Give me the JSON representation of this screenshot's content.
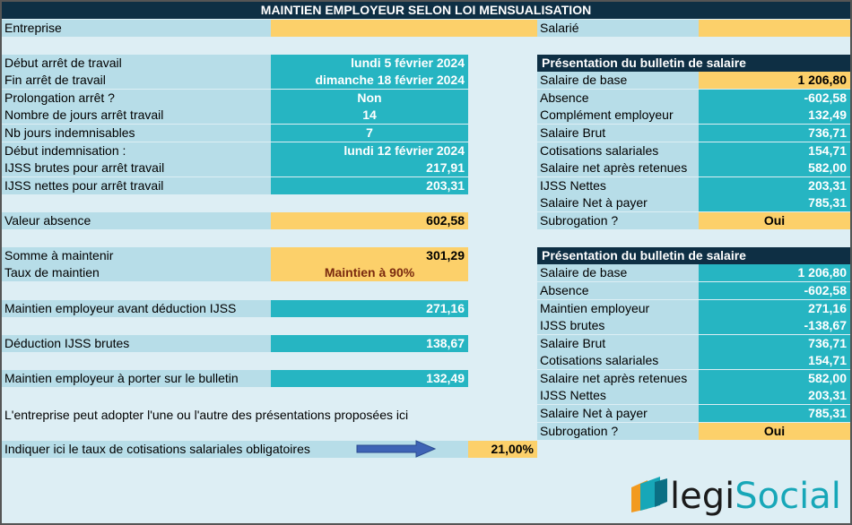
{
  "title": "MAINTIEN EMPLOYEUR SELON LOI MENSUALISATION",
  "top": {
    "entreprise_label": "Entreprise",
    "salarie_label": "Salarié"
  },
  "left": [
    {
      "label": "Début arrêt de travail",
      "value": "lundi 5 février 2024"
    },
    {
      "label": "Fin arrêt de travail",
      "value": "dimanche 18 février 2024"
    },
    {
      "label": "Prolongation arrêt ?",
      "value": "Non"
    },
    {
      "label": "Nombre de jours arrêt travail",
      "value": "14"
    },
    {
      "label": "Nb jours indemnisables",
      "value": "7"
    },
    {
      "label": "Début indemnisation :",
      "value": "lundi 12 février 2024"
    },
    {
      "label": "IJSS brutes pour arrêt travail",
      "value": "217,91"
    },
    {
      "label": "IJSS nettes pour arrêt travail",
      "value": "203,31"
    }
  ],
  "valeur_absence": {
    "label": "Valeur absence",
    "value": "602,58"
  },
  "somme": {
    "label": "Somme à maintenir",
    "value": "301,29"
  },
  "taux": {
    "label": "Taux de maintien",
    "value": "Maintien à 90%"
  },
  "avant": {
    "label": "Maintien employeur avant déduction IJSS",
    "value": "271,16"
  },
  "deduction": {
    "label": "Déduction IJSS brutes",
    "value": "138,67"
  },
  "porter": {
    "label": "Maintien employeur à porter sur le bulletin",
    "value": "132,49"
  },
  "note": "L'entreprise peut adopter l'une ou l'autre des présentations proposées ici",
  "cotis": {
    "label": "Indiquer ici le taux de cotisations salariales obligatoires",
    "value": "21,00%"
  },
  "bulletin1": {
    "header": "Présentation du bulletin de salaire",
    "rows": [
      {
        "label": "Salaire de base",
        "value": "1 206,80"
      },
      {
        "label": "Absence",
        "value": "-602,58"
      },
      {
        "label": "Complément employeur",
        "value": "132,49"
      },
      {
        "label": "Salaire Brut",
        "value": "736,71"
      },
      {
        "label": "Cotisations salariales",
        "value": "154,71"
      },
      {
        "label": "Salaire net après retenues",
        "value": "582,00"
      },
      {
        "label": "IJSS Nettes",
        "value": "203,31"
      },
      {
        "label": "Salaire Net à payer",
        "value": "785,31"
      }
    ],
    "subrogation": {
      "label": "Subrogation ?",
      "value": "Oui"
    }
  },
  "bulletin2": {
    "header": "Présentation du bulletin de salaire",
    "rows": [
      {
        "label": "Salaire de base",
        "value": "1 206,80"
      },
      {
        "label": "Absence",
        "value": "-602,58"
      },
      {
        "label": "Maintien employeur",
        "value": "271,16"
      },
      {
        "label": "IJSS brutes",
        "value": "-138,67"
      },
      {
        "label": "Salaire Brut",
        "value": "736,71"
      },
      {
        "label": "Cotisations salariales",
        "value": "154,71"
      },
      {
        "label": "Salaire net après retenues",
        "value": "582,00"
      },
      {
        "label": "IJSS Nettes",
        "value": "203,31"
      },
      {
        "label": "Salaire Net à payer",
        "value": "785,31"
      }
    ],
    "subrogation": {
      "label": "Subrogation ?",
      "value": "Oui"
    }
  },
  "logo": {
    "text_pre": "legi",
    "text_post": "Social"
  },
  "colors": {
    "navy": "#0e2f44",
    "teal": "#26b5c2",
    "yellow": "#fcd06a",
    "light_blue": "#b7dde8",
    "background": "#ddeef4",
    "arrow": "#3e63b5"
  }
}
